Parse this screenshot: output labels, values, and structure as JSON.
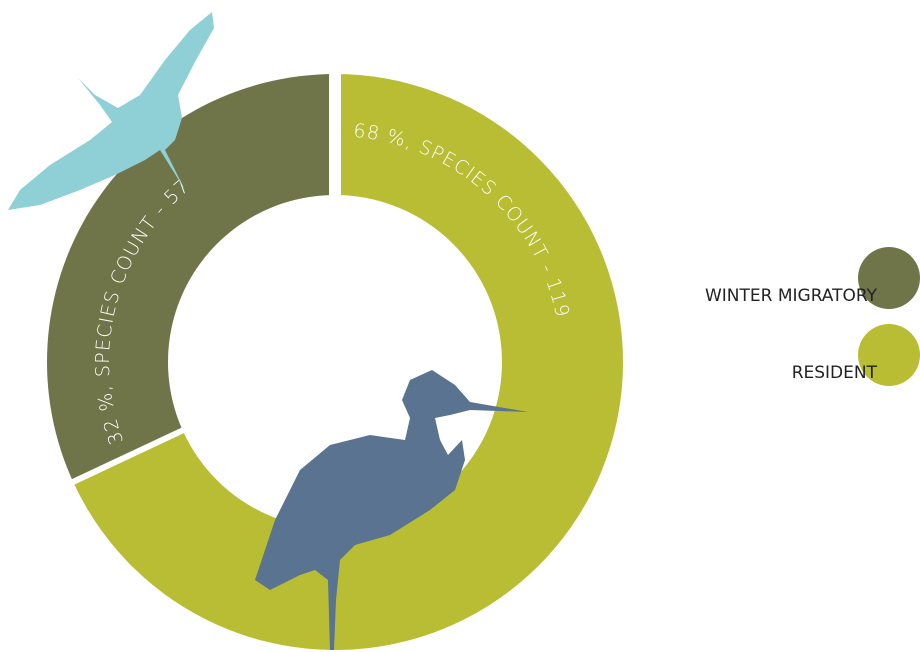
{
  "chart_data": {
    "type": "donut",
    "categories": [
      "WINTER MIGRATORY",
      "RESIDENT"
    ],
    "values": [
      32,
      68
    ],
    "value_labels": [
      "32 %, SPECIES COUNT - 57",
      "68 %, SPECIES COUNT - 119"
    ],
    "colors": [
      "#6f7549",
      "#b8bd33"
    ],
    "legend": "right"
  }
}
